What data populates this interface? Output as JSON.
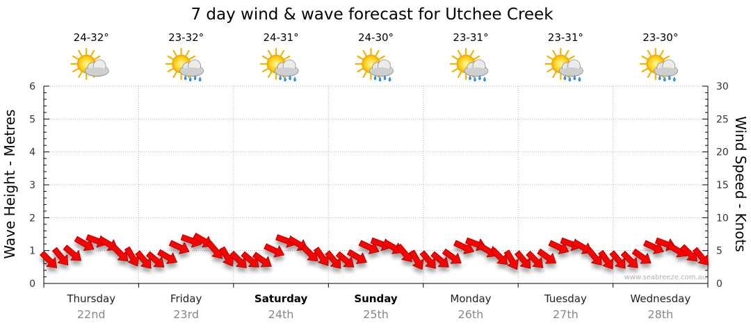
{
  "chart_data": {
    "type": "line",
    "title": "7 day wind & wave forecast for Utchee Creek",
    "ylabel": "Wave Height - Metres",
    "y2label": "Wind Speed - Knots",
    "ylim": [
      0,
      6
    ],
    "y2lim": [
      0,
      30
    ],
    "yticks": [
      "0",
      "1",
      "2",
      "3",
      "4",
      "5",
      "6"
    ],
    "y2ticks": [
      "0",
      "5",
      "10",
      "15",
      "20",
      "25",
      "30"
    ],
    "grid": true,
    "days": [
      {
        "name": "Thursday",
        "date": "22nd",
        "temp": "24-32°",
        "weather": "partly-cloudy",
        "bold": false
      },
      {
        "name": "Friday",
        "date": "23rd",
        "temp": "23-32°",
        "weather": "showers",
        "bold": false
      },
      {
        "name": "Saturday",
        "date": "24th",
        "temp": "24-31°",
        "weather": "showers",
        "bold": true
      },
      {
        "name": "Sunday",
        "date": "25th",
        "temp": "24-30°",
        "weather": "showers",
        "bold": true
      },
      {
        "name": "Monday",
        "date": "26th",
        "temp": "23-31°",
        "weather": "showers",
        "bold": false
      },
      {
        "name": "Tuesday",
        "date": "27th",
        "temp": "23-31°",
        "weather": "showers",
        "bold": false
      },
      {
        "name": "Wednesday",
        "date": "28th",
        "temp": "23-30°",
        "weather": "showers",
        "bold": false
      }
    ],
    "wind_series": {
      "name": "Wind",
      "color": "#ff0000",
      "x_hours": [
        0,
        3,
        6,
        9,
        12,
        15,
        18,
        21,
        24,
        27,
        30,
        33,
        36,
        39,
        42,
        45,
        48,
        51,
        54,
        57,
        60,
        63,
        66,
        69,
        72,
        75,
        78,
        81,
        84,
        87,
        90,
        93,
        96,
        99,
        102,
        105,
        108,
        111,
        114,
        117,
        120,
        123,
        126,
        129,
        132,
        135,
        138,
        141,
        144,
        147,
        150,
        153,
        156,
        159,
        162,
        165
      ],
      "speed_knots": [
        3.5,
        4.0,
        4.5,
        6.0,
        6.5,
        6.0,
        4.5,
        4.0,
        3.5,
        3.5,
        4.0,
        5.5,
        6.5,
        6.5,
        5.0,
        4.0,
        3.5,
        3.5,
        3.5,
        5.0,
        6.5,
        6.0,
        4.5,
        4.0,
        3.5,
        3.5,
        4.0,
        5.5,
        6.0,
        5.5,
        4.5,
        3.5,
        3.5,
        3.5,
        4.0,
        5.5,
        6.0,
        5.0,
        4.0,
        3.5,
        3.5,
        3.5,
        4.0,
        5.5,
        6.0,
        5.5,
        4.0,
        3.5,
        3.5,
        3.5,
        4.0,
        5.5,
        6.0,
        5.0,
        4.5,
        4.0
      ],
      "direction_deg": [
        135,
        140,
        130,
        120,
        110,
        120,
        135,
        150,
        140,
        130,
        120,
        115,
        110,
        120,
        140,
        150,
        135,
        130,
        125,
        115,
        110,
        120,
        135,
        145,
        140,
        130,
        120,
        115,
        110,
        120,
        140,
        150,
        140,
        130,
        125,
        115,
        110,
        120,
        135,
        150,
        140,
        135,
        125,
        115,
        110,
        120,
        140,
        145,
        140,
        135,
        125,
        115,
        110,
        120,
        135,
        140
      ]
    },
    "wave_series": {
      "name": "Wave",
      "values": []
    }
  },
  "watermark": "www.seabreeze.com.au",
  "colors": {
    "wind": "#ff0000",
    "wind_stroke": "#9a0000",
    "grid": "#b3b3b3",
    "axis": "#000000"
  }
}
